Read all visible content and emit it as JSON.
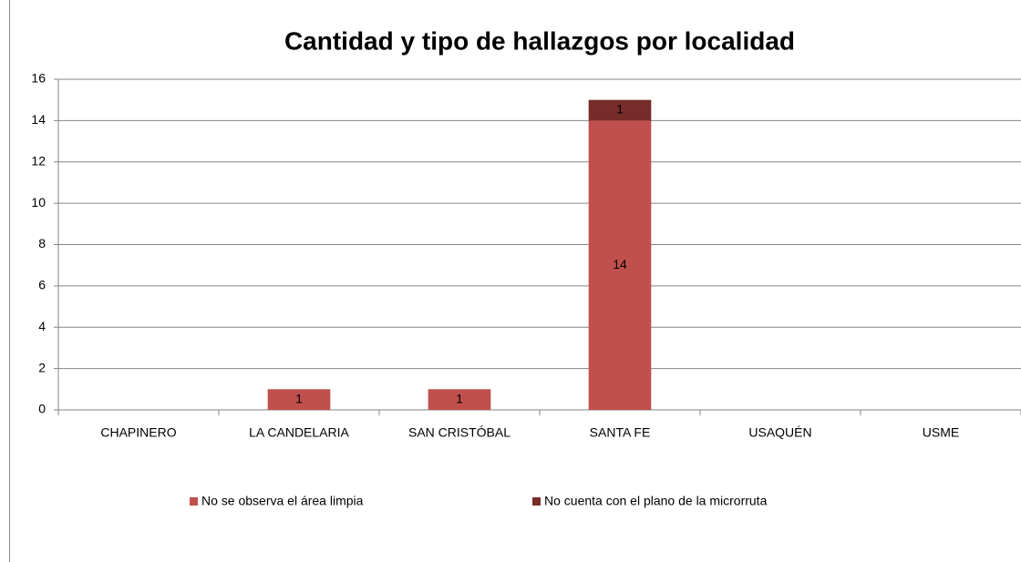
{
  "chart_data": {
    "type": "stacked_bar",
    "title": "Cantidad y tipo de hallazgos por localidad",
    "categories": [
      "CHAPINERO",
      "LA CANDELARIA",
      "SAN CRISTÓBAL",
      "SANTA FE",
      "USAQUÉN",
      "USME"
    ],
    "series": [
      {
        "name": "No se observa el área limpia",
        "color": "#c0504d",
        "values": [
          null,
          1,
          1,
          14,
          null,
          null
        ]
      },
      {
        "name": "No cuenta con el plano de la microrruta",
        "color": "#772c2a",
        "values": [
          null,
          null,
          null,
          1,
          null,
          null
        ]
      }
    ],
    "ylim": [
      0,
      16
    ],
    "yticks": [
      0,
      2,
      4,
      6,
      8,
      10,
      12,
      14,
      16
    ],
    "grid": true,
    "legend": "bottom"
  }
}
